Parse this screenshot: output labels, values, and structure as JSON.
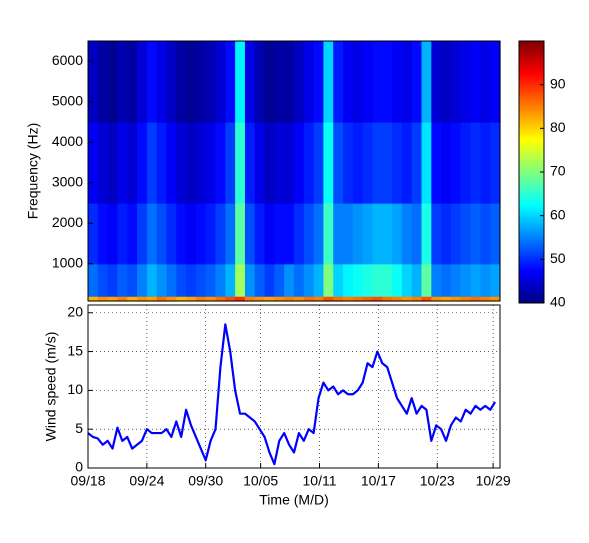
{
  "chart_data": [
    {
      "type": "heatmap",
      "ylabel": "Frequency (Hz)",
      "colormap": "jet",
      "x_bins": [
        0,
        1,
        2,
        3,
        4,
        5,
        6,
        7,
        8,
        9,
        10,
        11,
        12,
        13,
        14,
        15,
        16,
        17,
        18,
        19,
        20,
        21,
        22,
        23,
        24,
        25,
        26,
        27,
        28,
        29,
        30,
        31,
        32,
        33,
        34,
        35,
        36,
        37,
        38,
        39,
        40,
        41,
        42
      ],
      "y_bins": [
        80,
        200,
        1000,
        2500,
        4500,
        6500
      ],
      "z": [
        [
          82,
          84,
          83,
          85,
          82,
          84,
          83,
          86,
          84,
          82,
          83,
          85,
          84,
          86,
          88,
          90,
          85,
          84,
          83,
          84,
          85,
          84,
          86,
          85,
          88,
          86,
          85,
          86,
          87,
          88,
          86,
          85,
          84,
          85,
          88,
          84,
          83,
          84,
          85,
          86,
          85,
          84
        ],
        [
          54,
          52,
          51,
          53,
          52,
          55,
          58,
          56,
          54,
          52,
          51,
          52,
          53,
          55,
          58,
          72,
          56,
          53,
          51,
          53,
          56,
          54,
          56,
          58,
          70,
          60,
          62,
          63,
          64,
          65,
          65,
          63,
          60,
          58,
          68,
          55,
          54,
          55,
          56,
          57,
          56,
          57
        ],
        [
          50,
          48,
          47,
          49,
          48,
          51,
          54,
          52,
          50,
          48,
          47,
          48,
          49,
          51,
          54,
          68,
          52,
          49,
          47,
          48,
          48,
          50,
          52,
          54,
          66,
          55,
          55,
          56,
          57,
          58,
          58,
          57,
          55,
          54,
          64,
          51,
          50,
          51,
          52,
          53,
          52,
          53
        ],
        [
          47,
          45,
          44,
          46,
          45,
          48,
          51,
          49,
          47,
          45,
          44,
          45,
          46,
          48,
          51,
          65,
          49,
          46,
          44,
          45,
          45,
          47,
          49,
          51,
          63,
          52,
          50,
          49,
          50,
          51,
          51,
          50,
          49,
          51,
          61,
          48,
          47,
          48,
          49,
          50,
          49,
          50
        ],
        [
          44,
          42,
          41,
          43,
          42,
          45,
          48,
          46,
          44,
          42,
          41,
          42,
          43,
          45,
          48,
          62,
          46,
          43,
          41,
          42,
          42,
          44,
          46,
          48,
          60,
          49,
          47,
          46,
          47,
          48,
          48,
          47,
          46,
          48,
          58,
          45,
          44,
          45,
          46,
          47,
          46,
          47
        ]
      ],
      "xlim": [
        0,
        42
      ],
      "ylim": [
        80,
        6500
      ],
      "yticks": [
        1000,
        2000,
        3000,
        4000,
        5000,
        6000
      ],
      "zlim": [
        40,
        100
      ],
      "zticks": [
        40,
        50,
        60,
        70,
        80,
        90
      ]
    },
    {
      "type": "line",
      "xlabel": "Time (M/D)",
      "ylabel": "Wind speed (m/s)",
      "color": "#0000ff",
      "grid": true,
      "x": [
        0,
        0.5,
        1,
        1.5,
        2,
        2.5,
        3,
        3.5,
        4,
        4.5,
        5,
        5.5,
        6,
        6.5,
        7,
        7.5,
        8,
        8.5,
        9,
        9.5,
        10,
        10.5,
        11,
        11.5,
        12,
        12.5,
        13,
        13.5,
        14,
        14.5,
        15,
        15.5,
        16,
        16.5,
        17,
        17.5,
        18,
        18.5,
        19,
        19.5,
        20,
        20.5,
        21,
        21.5,
        22,
        22.5,
        23,
        23.5,
        24,
        24.5,
        25,
        25.5,
        26,
        26.5,
        27,
        27.5,
        28,
        28.5,
        29,
        29.5,
        30,
        30.5,
        31,
        31.5,
        32,
        32.5,
        33,
        33.5,
        34,
        34.5,
        35,
        35.5,
        36,
        36.5,
        37,
        37.5,
        38,
        38.5,
        39,
        39.5,
        40,
        40.5,
        41,
        41.5
      ],
      "values": [
        4.5,
        4,
        3.8,
        3,
        3.5,
        2.5,
        5.2,
        3.5,
        4,
        2.5,
        3,
        3.5,
        5,
        4.5,
        4.5,
        4.5,
        5,
        4,
        6,
        4,
        7.5,
        5.5,
        4,
        2.5,
        1,
        3.5,
        5,
        13,
        18.5,
        15,
        10,
        7,
        7,
        6.5,
        6,
        5,
        4,
        2,
        0.5,
        3.5,
        4.5,
        3,
        2,
        4.5,
        3.5,
        5,
        4.5,
        9,
        11,
        10,
        10.5,
        9.5,
        10,
        9.5,
        9.5,
        10,
        11,
        13.5,
        13,
        15,
        13.5,
        13,
        11,
        9,
        8,
        7,
        9,
        7,
        8,
        7.5,
        3.5,
        5.5,
        5,
        3.5,
        5.5,
        6.5,
        6,
        7.5,
        7,
        8,
        7.5,
        8,
        7.5,
        8.5
      ],
      "xlim": [
        0,
        42
      ],
      "xticks": [
        {
          "value": 0,
          "label": "09/18"
        },
        {
          "value": 6,
          "label": "09/24"
        },
        {
          "value": 12,
          "label": "09/30"
        },
        {
          "value": 17.6,
          "label": "10/05"
        },
        {
          "value": 23.6,
          "label": "10/11"
        },
        {
          "value": 29.6,
          "label": "10/17"
        },
        {
          "value": 35.6,
          "label": "10/23"
        },
        {
          "value": 41.3,
          "label": "10/29"
        }
      ],
      "ylim": [
        0,
        21
      ],
      "yticks": [
        0,
        5,
        10,
        15,
        20
      ]
    }
  ]
}
